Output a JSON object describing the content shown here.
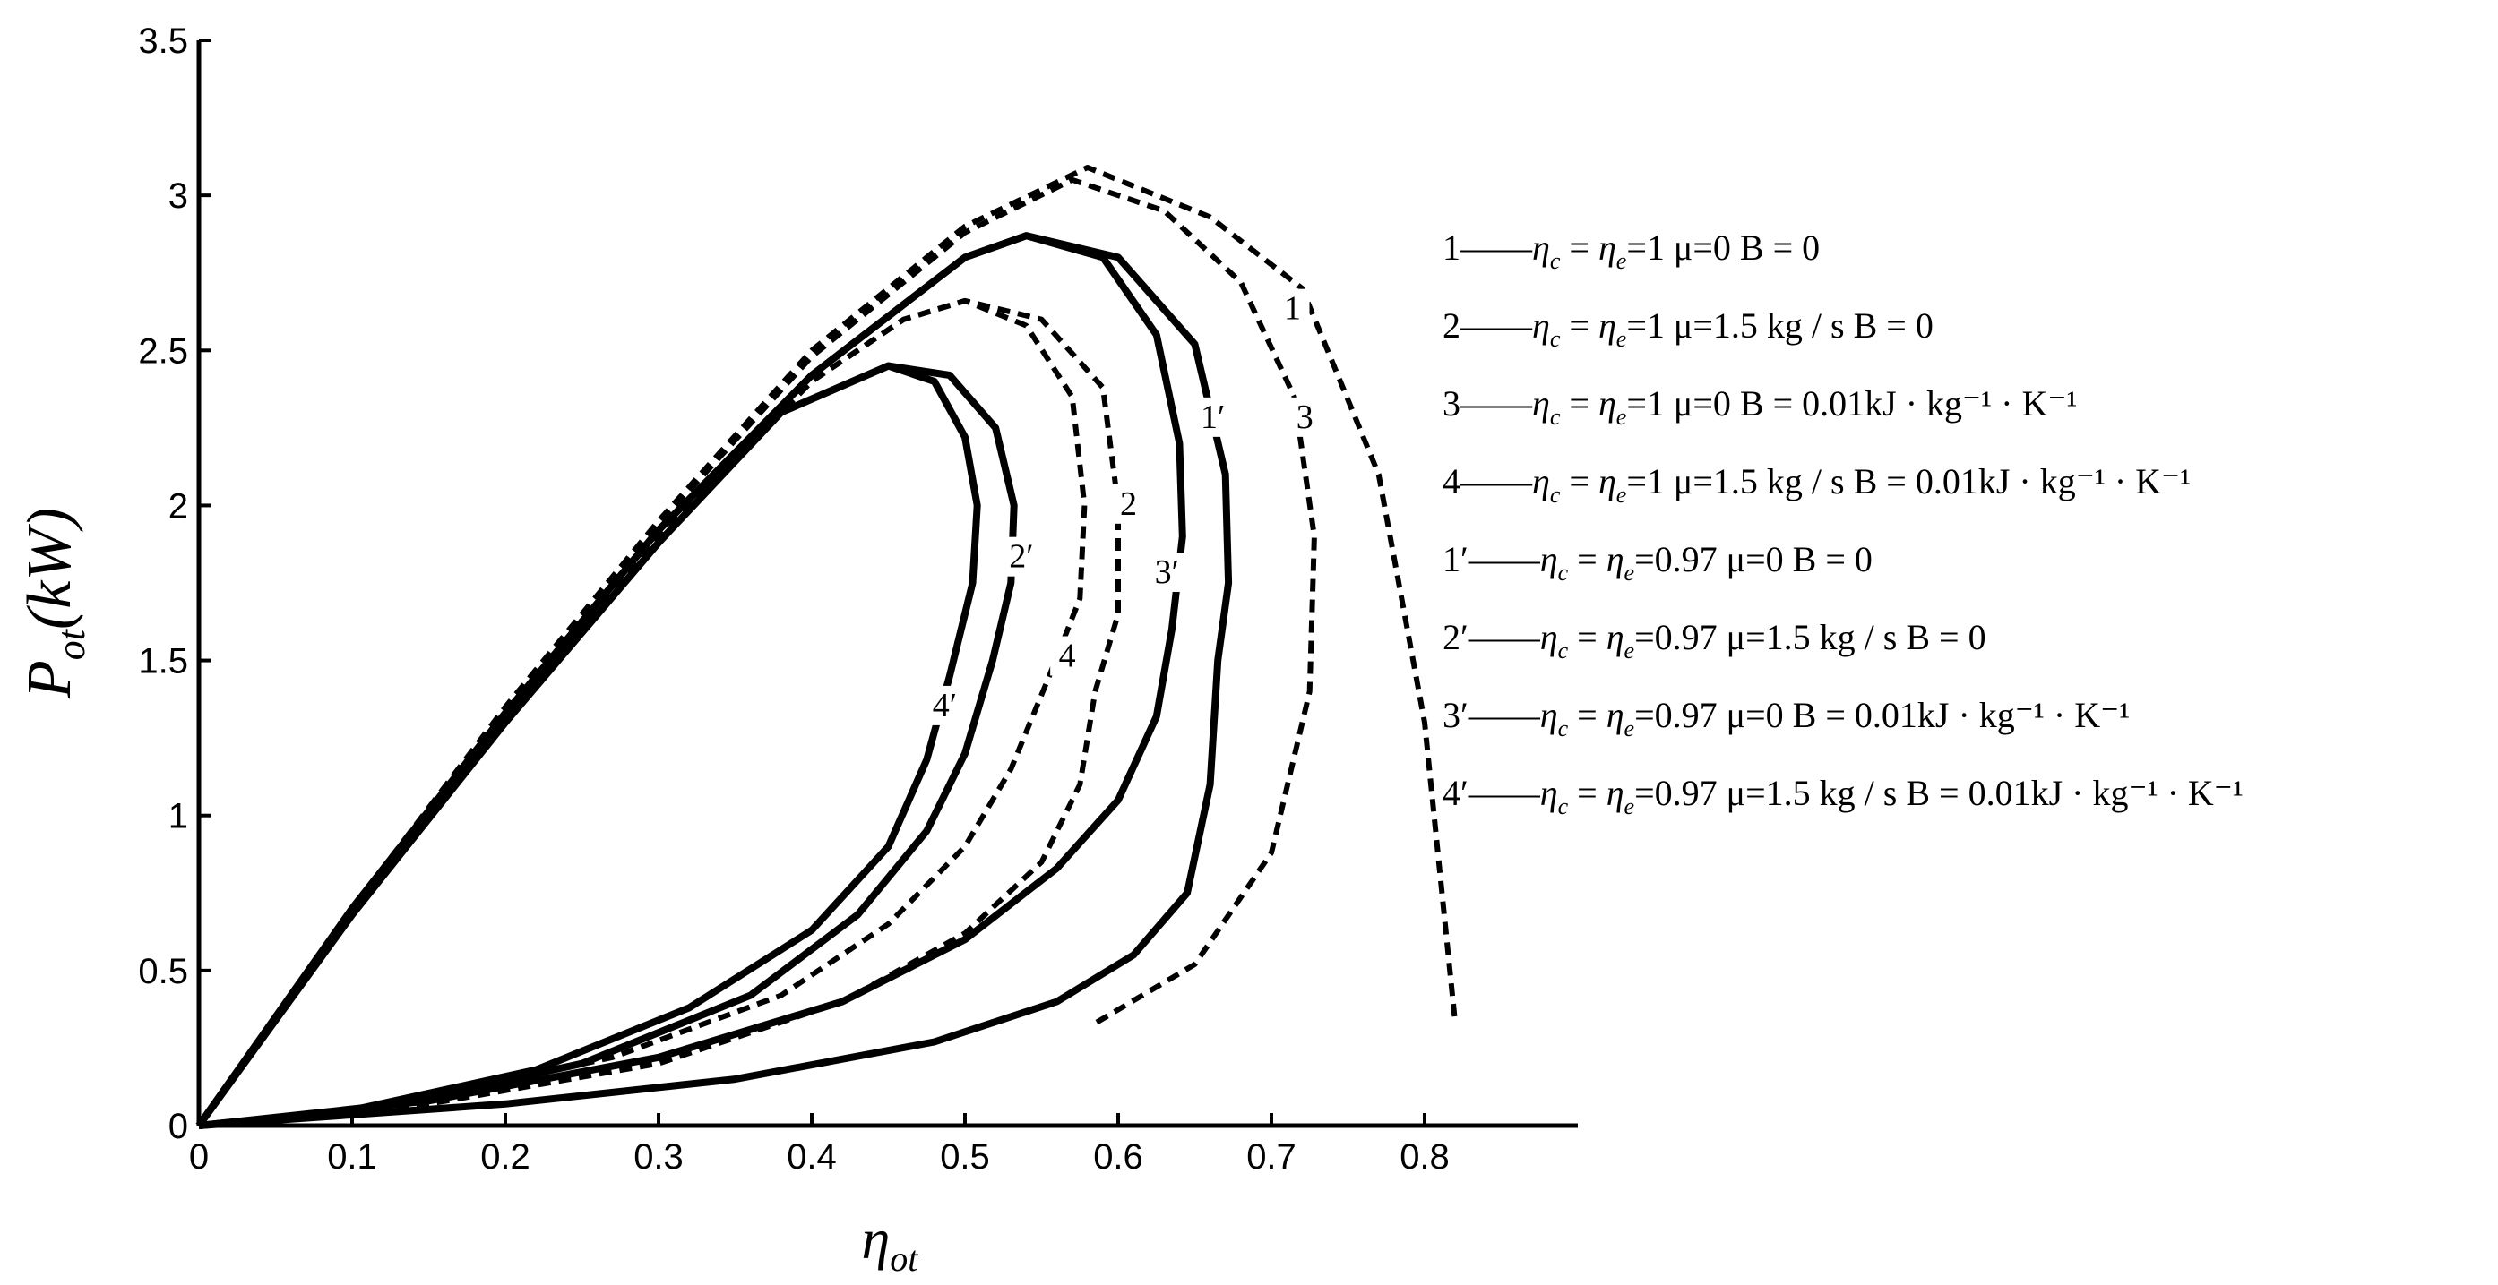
{
  "chart_data": {
    "type": "line",
    "xlabel": "η_ot",
    "ylabel": "P_ot (kW)",
    "xlim": [
      0,
      0.9
    ],
    "ylim": [
      0,
      3.5
    ],
    "xticks": [
      "0",
      "0.1",
      "0.2",
      "0.3",
      "0.4",
      "0.5",
      "0.6",
      "0.7",
      "0.8"
    ],
    "yticks": [
      "0",
      "0.5",
      "1",
      "1.5",
      "2",
      "2.5",
      "3",
      "3.5"
    ],
    "grid": false,
    "legend_position": "right",
    "series": [
      {
        "name": "1",
        "style": "dashed",
        "legend": "1——η_c = η_e=1 μ=0 B = 0",
        "upper": [
          [
            0,
            0
          ],
          [
            0.1,
            0.7
          ],
          [
            0.2,
            1.35
          ],
          [
            0.3,
            1.95
          ],
          [
            0.4,
            2.5
          ],
          [
            0.5,
            2.9
          ],
          [
            0.58,
            3.09
          ],
          [
            0.66,
            2.93
          ],
          [
            0.72,
            2.7
          ],
          [
            0.77,
            2.1
          ],
          [
            0.8,
            1.3
          ],
          [
            0.82,
            0.33
          ]
        ],
        "lower": []
      },
      {
        "name": "1′",
        "style": "solid",
        "legend": "1′——η_c = η_e=0.97 μ=0 B = 0",
        "upper": [
          [
            0,
            0
          ],
          [
            0.1,
            0.7
          ],
          [
            0.2,
            1.33
          ],
          [
            0.3,
            1.92
          ],
          [
            0.4,
            2.42
          ],
          [
            0.5,
            2.8
          ],
          [
            0.54,
            2.87
          ],
          [
            0.6,
            2.8
          ],
          [
            0.65,
            2.52
          ],
          [
            0.67,
            2.1
          ],
          [
            0.672,
            1.75
          ],
          [
            0.665,
            1.5
          ]
        ],
        "lower": [
          [
            0,
            0
          ],
          [
            0.2,
            0.07
          ],
          [
            0.35,
            0.15
          ],
          [
            0.48,
            0.27
          ],
          [
            0.56,
            0.4
          ],
          [
            0.61,
            0.55
          ],
          [
            0.645,
            0.75
          ],
          [
            0.66,
            1.1
          ],
          [
            0.665,
            1.5
          ]
        ]
      },
      {
        "name": "2",
        "style": "dashed",
        "legend": "2——η_c = η_e=1 μ=1.5 kg / s B = 0",
        "upper": [
          [
            0,
            0
          ],
          [
            0.1,
            0.69
          ],
          [
            0.2,
            1.32
          ],
          [
            0.3,
            1.9
          ],
          [
            0.4,
            2.4
          ],
          [
            0.46,
            2.6
          ],
          [
            0.5,
            2.66
          ],
          [
            0.55,
            2.6
          ],
          [
            0.59,
            2.38
          ],
          [
            0.6,
            2.0
          ],
          [
            0.6,
            1.65
          ],
          [
            0.585,
            1.4
          ]
        ],
        "lower": [
          [
            0,
            0
          ],
          [
            0.15,
            0.07
          ],
          [
            0.3,
            0.2
          ],
          [
            0.42,
            0.4
          ],
          [
            0.5,
            0.62
          ],
          [
            0.55,
            0.85
          ],
          [
            0.575,
            1.1
          ],
          [
            0.585,
            1.4
          ]
        ]
      },
      {
        "name": "2′",
        "style": "solid",
        "legend": "2′——η_c = η_e=0.97 μ=1.5 kg / s B = 0",
        "upper": [
          [
            0,
            0
          ],
          [
            0.1,
            0.68
          ],
          [
            0.2,
            1.3
          ],
          [
            0.3,
            1.88
          ],
          [
            0.38,
            2.3
          ],
          [
            0.45,
            2.45
          ],
          [
            0.49,
            2.42
          ],
          [
            0.52,
            2.25
          ],
          [
            0.532,
            2.0
          ],
          [
            0.53,
            1.75
          ],
          [
            0.518,
            1.5
          ]
        ],
        "lower": [
          [
            0,
            0
          ],
          [
            0.12,
            0.06
          ],
          [
            0.25,
            0.2
          ],
          [
            0.36,
            0.42
          ],
          [
            0.43,
            0.68
          ],
          [
            0.475,
            0.95
          ],
          [
            0.5,
            1.2
          ],
          [
            0.518,
            1.5
          ]
        ]
      },
      {
        "name": "3",
        "style": "dashed",
        "legend": "3——η_c = η_e=1 μ=0 B = 0.01kJ · kg⁻¹ · K⁻¹",
        "upper": [
          [
            0,
            0
          ],
          [
            0.1,
            0.7
          ],
          [
            0.2,
            1.34
          ],
          [
            0.3,
            1.94
          ],
          [
            0.4,
            2.48
          ],
          [
            0.5,
            2.88
          ],
          [
            0.57,
            3.05
          ],
          [
            0.63,
            2.95
          ],
          [
            0.68,
            2.72
          ],
          [
            0.715,
            2.35
          ],
          [
            0.728,
            1.9
          ],
          [
            0.725,
            1.4
          ],
          [
            0.7,
            0.88
          ],
          [
            0.65,
            0.52
          ],
          [
            0.585,
            0.33
          ]
        ],
        "lower": []
      },
      {
        "name": "3′",
        "style": "solid",
        "legend": "3′——η_c = η_e=0.97 μ=0 B = 0.01kJ · kg⁻¹ · K⁻¹",
        "upper": [
          [
            0,
            0
          ],
          [
            0.1,
            0.7
          ],
          [
            0.2,
            1.33
          ],
          [
            0.3,
            1.92
          ],
          [
            0.4,
            2.42
          ],
          [
            0.5,
            2.8
          ],
          [
            0.54,
            2.87
          ],
          [
            0.59,
            2.8
          ],
          [
            0.625,
            2.55
          ],
          [
            0.64,
            2.2
          ],
          [
            0.642,
            1.9
          ],
          [
            0.635,
            1.6
          ]
        ],
        "lower": [
          [
            0,
            0
          ],
          [
            0.15,
            0.08
          ],
          [
            0.3,
            0.22
          ],
          [
            0.42,
            0.4
          ],
          [
            0.5,
            0.6
          ],
          [
            0.56,
            0.83
          ],
          [
            0.6,
            1.05
          ],
          [
            0.625,
            1.32
          ],
          [
            0.635,
            1.6
          ]
        ]
      },
      {
        "name": "4",
        "style": "dashed",
        "legend": "4——η_c = η_e=1 μ=1.5 kg / s B = 0.01kJ · kg⁻¹ · K⁻¹",
        "upper": [
          [
            0,
            0
          ],
          [
            0.1,
            0.69
          ],
          [
            0.2,
            1.32
          ],
          [
            0.3,
            1.9
          ],
          [
            0.4,
            2.4
          ],
          [
            0.46,
            2.6
          ],
          [
            0.5,
            2.66
          ],
          [
            0.54,
            2.58
          ],
          [
            0.57,
            2.35
          ],
          [
            0.578,
            2.0
          ],
          [
            0.575,
            1.7
          ],
          [
            0.555,
            1.45
          ]
        ],
        "lower": [
          [
            0,
            0
          ],
          [
            0.13,
            0.07
          ],
          [
            0.27,
            0.22
          ],
          [
            0.38,
            0.42
          ],
          [
            0.45,
            0.65
          ],
          [
            0.5,
            0.9
          ],
          [
            0.53,
            1.15
          ],
          [
            0.555,
            1.45
          ]
        ]
      },
      {
        "name": "4′",
        "style": "solid",
        "legend": "4′——η_c = η_e=0.97 μ=1.5 kg / s B = 0.01kJ · kg⁻¹ · K⁻¹",
        "upper": [
          [
            0,
            0
          ],
          [
            0.1,
            0.68
          ],
          [
            0.2,
            1.3
          ],
          [
            0.3,
            1.88
          ],
          [
            0.38,
            2.3
          ],
          [
            0.45,
            2.45
          ],
          [
            0.48,
            2.4
          ],
          [
            0.5,
            2.22
          ],
          [
            0.508,
            2.0
          ],
          [
            0.505,
            1.75
          ],
          [
            0.49,
            1.45
          ]
        ],
        "lower": [
          [
            0,
            0
          ],
          [
            0.1,
            0.05
          ],
          [
            0.22,
            0.18
          ],
          [
            0.32,
            0.38
          ],
          [
            0.4,
            0.63
          ],
          [
            0.45,
            0.9
          ],
          [
            0.475,
            1.18
          ],
          [
            0.49,
            1.45
          ]
        ]
      }
    ],
    "curve_labels": [
      {
        "text": "1",
        "x": 0.712,
        "y": 2.6
      },
      {
        "text": "3",
        "x": 0.72,
        "y": 2.25
      },
      {
        "text": "1′",
        "x": 0.66,
        "y": 2.25
      },
      {
        "text": "2",
        "x": 0.605,
        "y": 1.97
      },
      {
        "text": "3′",
        "x": 0.63,
        "y": 1.75
      },
      {
        "text": "2′",
        "x": 0.535,
        "y": 1.8
      },
      {
        "text": "4",
        "x": 0.565,
        "y": 1.48
      },
      {
        "text": "4′",
        "x": 0.485,
        "y": 1.32
      }
    ],
    "legend": [
      {
        "num": "1",
        "mid": "1 μ=0 B = 0"
      },
      {
        "num": "2",
        "mid": "1 μ=1.5 kg / s B = 0"
      },
      {
        "num": "3",
        "mid": "1 μ=0 B = 0.01kJ · kg⁻¹ · K⁻¹"
      },
      {
        "num": "4",
        "mid": "1 μ=1.5 kg / s B = 0.01kJ · kg⁻¹ · K⁻¹"
      },
      {
        "num": "1′",
        "mid": "0.97 μ=0 B = 0"
      },
      {
        "num": "2′",
        "mid": "0.97 μ=1.5 kg / s B = 0"
      },
      {
        "num": "3′",
        "mid": "0.97 μ=0 B = 0.01kJ · kg⁻¹ · K⁻¹"
      },
      {
        "num": "4′",
        "mid": "0.97 μ=1.5 kg / s B = 0.01kJ · kg⁻¹ · K⁻¹"
      }
    ]
  }
}
